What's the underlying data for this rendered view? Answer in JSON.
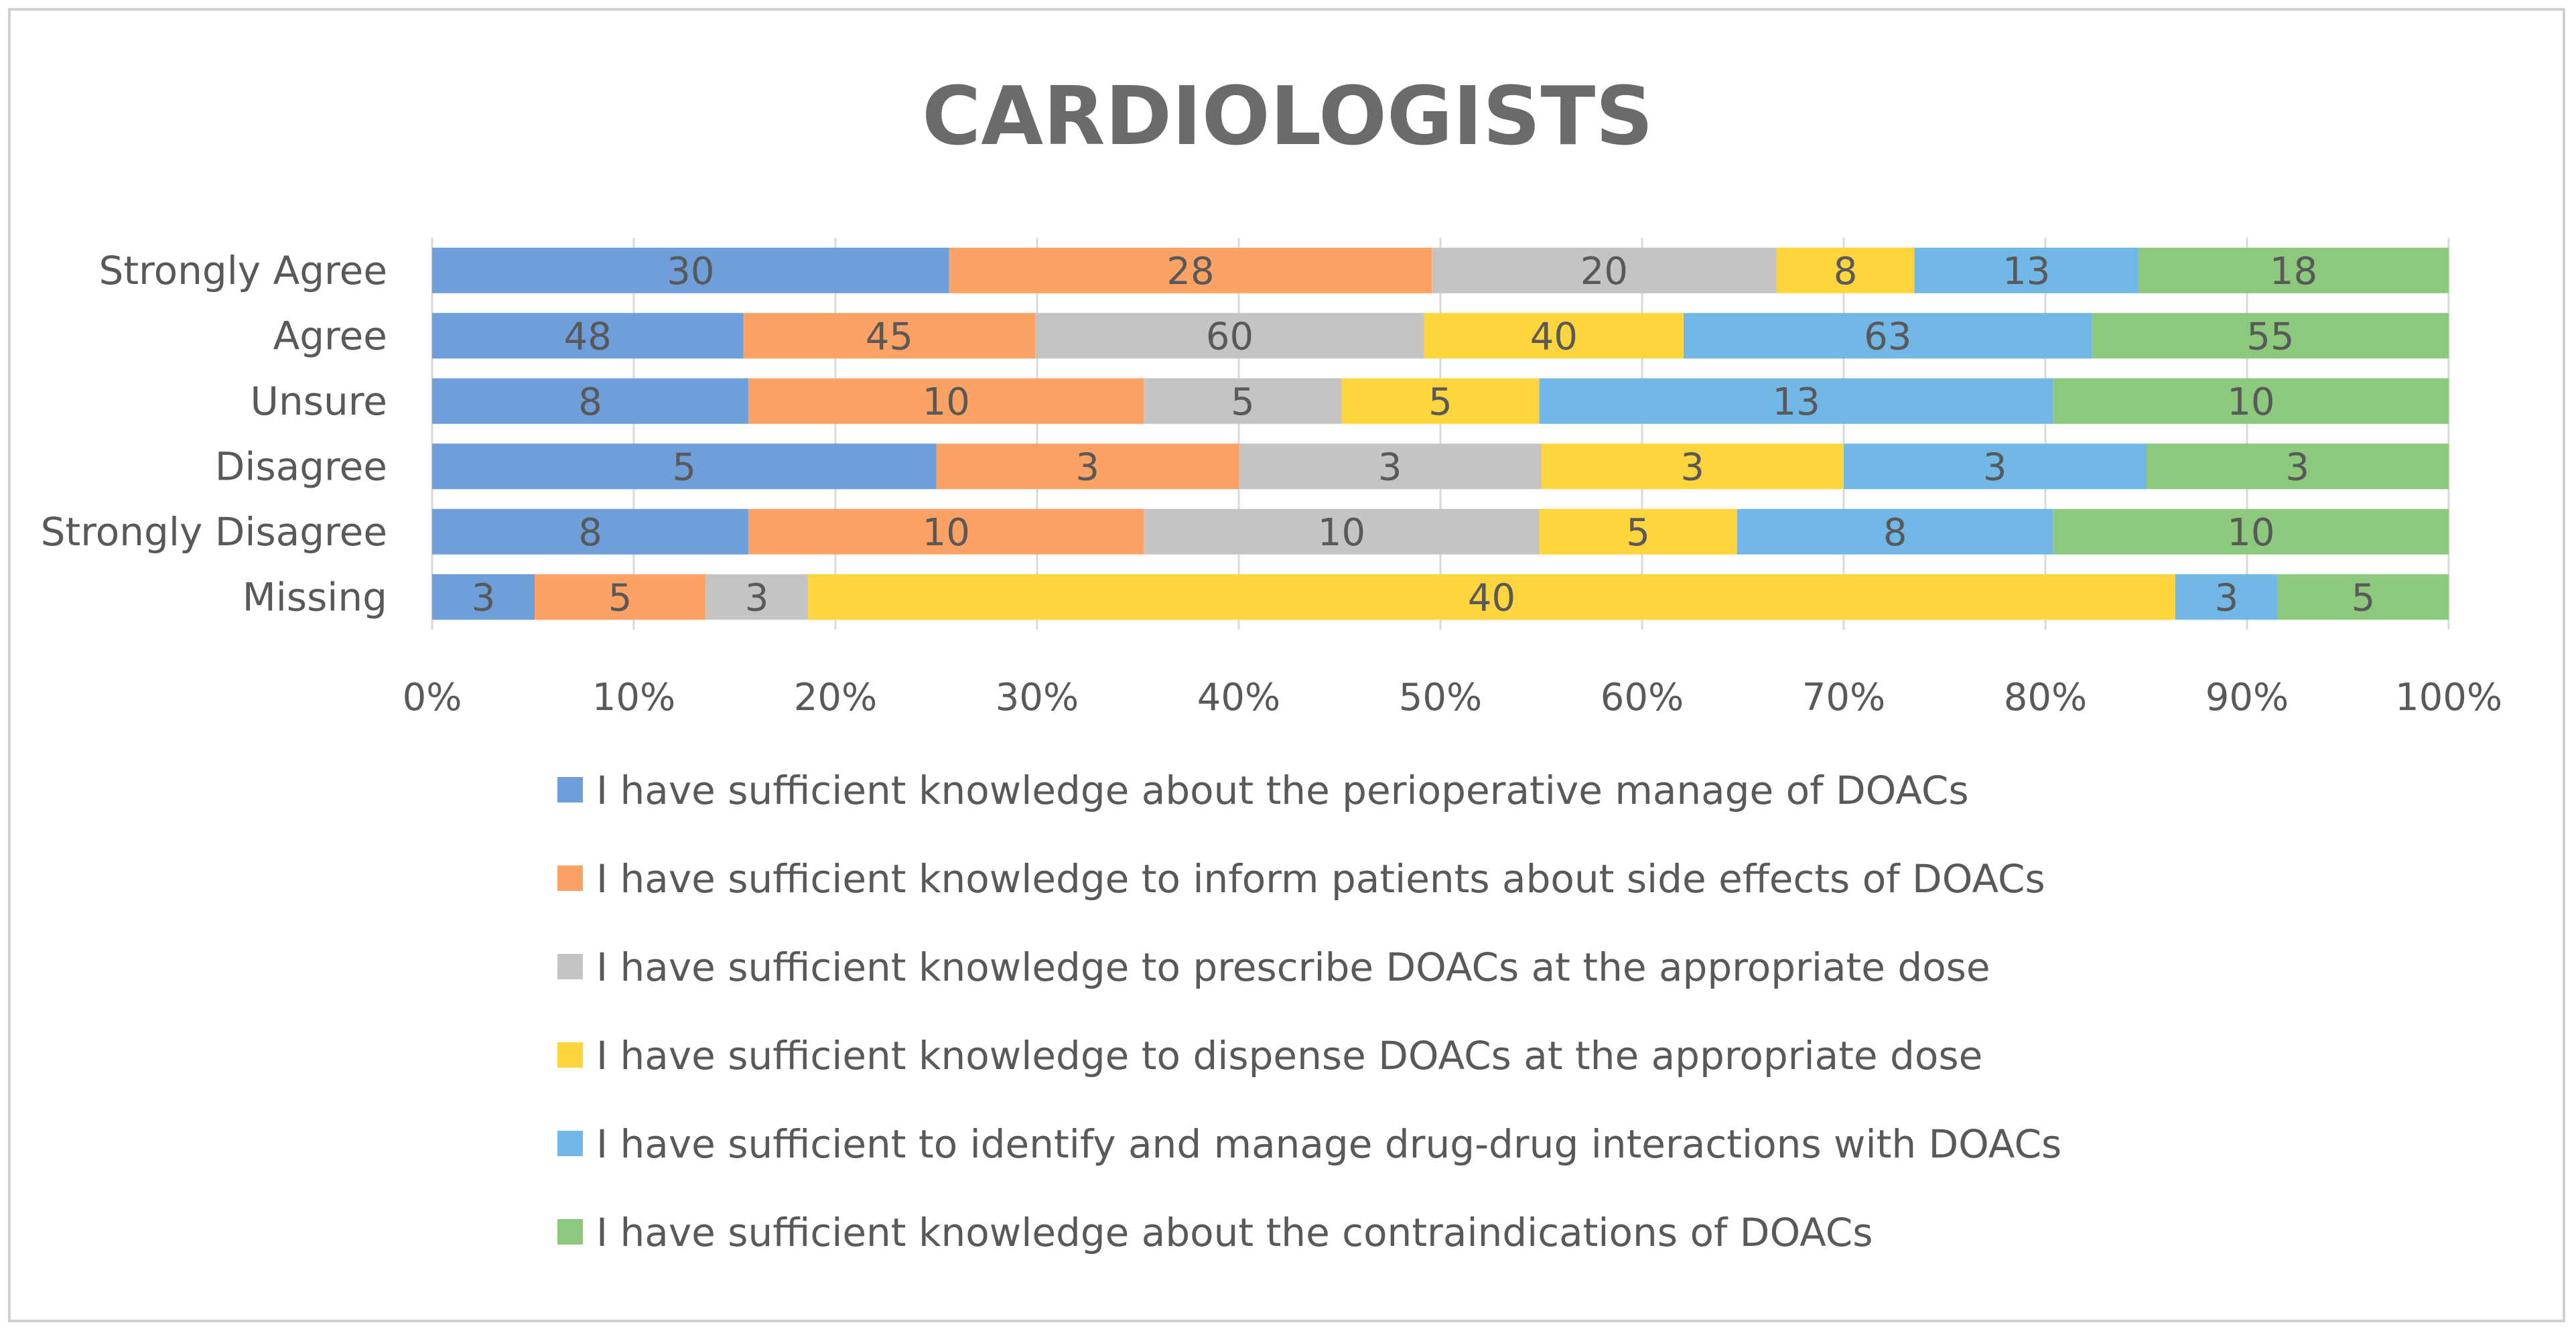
{
  "chart_data": {
    "type": "bar",
    "orientation": "horizontal",
    "stacking": "percent",
    "title": "CARDIOLOGISTS",
    "categories": [
      "Strongly Agree",
      "Agree",
      "Unsure",
      "Disagree",
      "Strongly Disagree",
      "Missing"
    ],
    "x_ticks": [
      "0%",
      "10%",
      "20%",
      "30%",
      "40%",
      "50%",
      "60%",
      "70%",
      "80%",
      "90%",
      "100%"
    ],
    "xlim": [
      0,
      100
    ],
    "grid": true,
    "legend_position": "bottom",
    "series": [
      {
        "name": "I have sufficient knowledge about the perioperative manage of DOACs",
        "color": "#6f9fdb",
        "values": [
          30,
          48,
          8,
          5,
          8,
          3
        ]
      },
      {
        "name": "I have sufficient knowledge to inform patients about side effects of DOACs",
        "color": "#fba264",
        "values": [
          28,
          45,
          10,
          3,
          10,
          5
        ]
      },
      {
        "name": "I have sufficient knowledge to prescribe DOACs at the appropriate dose",
        "color": "#c4c4c4",
        "values": [
          20,
          60,
          5,
          3,
          10,
          3
        ]
      },
      {
        "name": "I have sufficient knowledge to dispense DOACs at the appropriate dose",
        "color": "#ffd53e",
        "values": [
          8,
          40,
          5,
          3,
          5,
          40
        ]
      },
      {
        "name": "I have sufficient to identify and manage drug-drug interactions with DOACs",
        "color": "#72b8e6",
        "values": [
          13,
          63,
          13,
          3,
          8,
          3
        ]
      },
      {
        "name": "I have sufficient knowledge about the contraindications of DOACs",
        "color": "#8cc97c",
        "values": [
          18,
          55,
          10,
          3,
          10,
          5
        ]
      }
    ]
  }
}
